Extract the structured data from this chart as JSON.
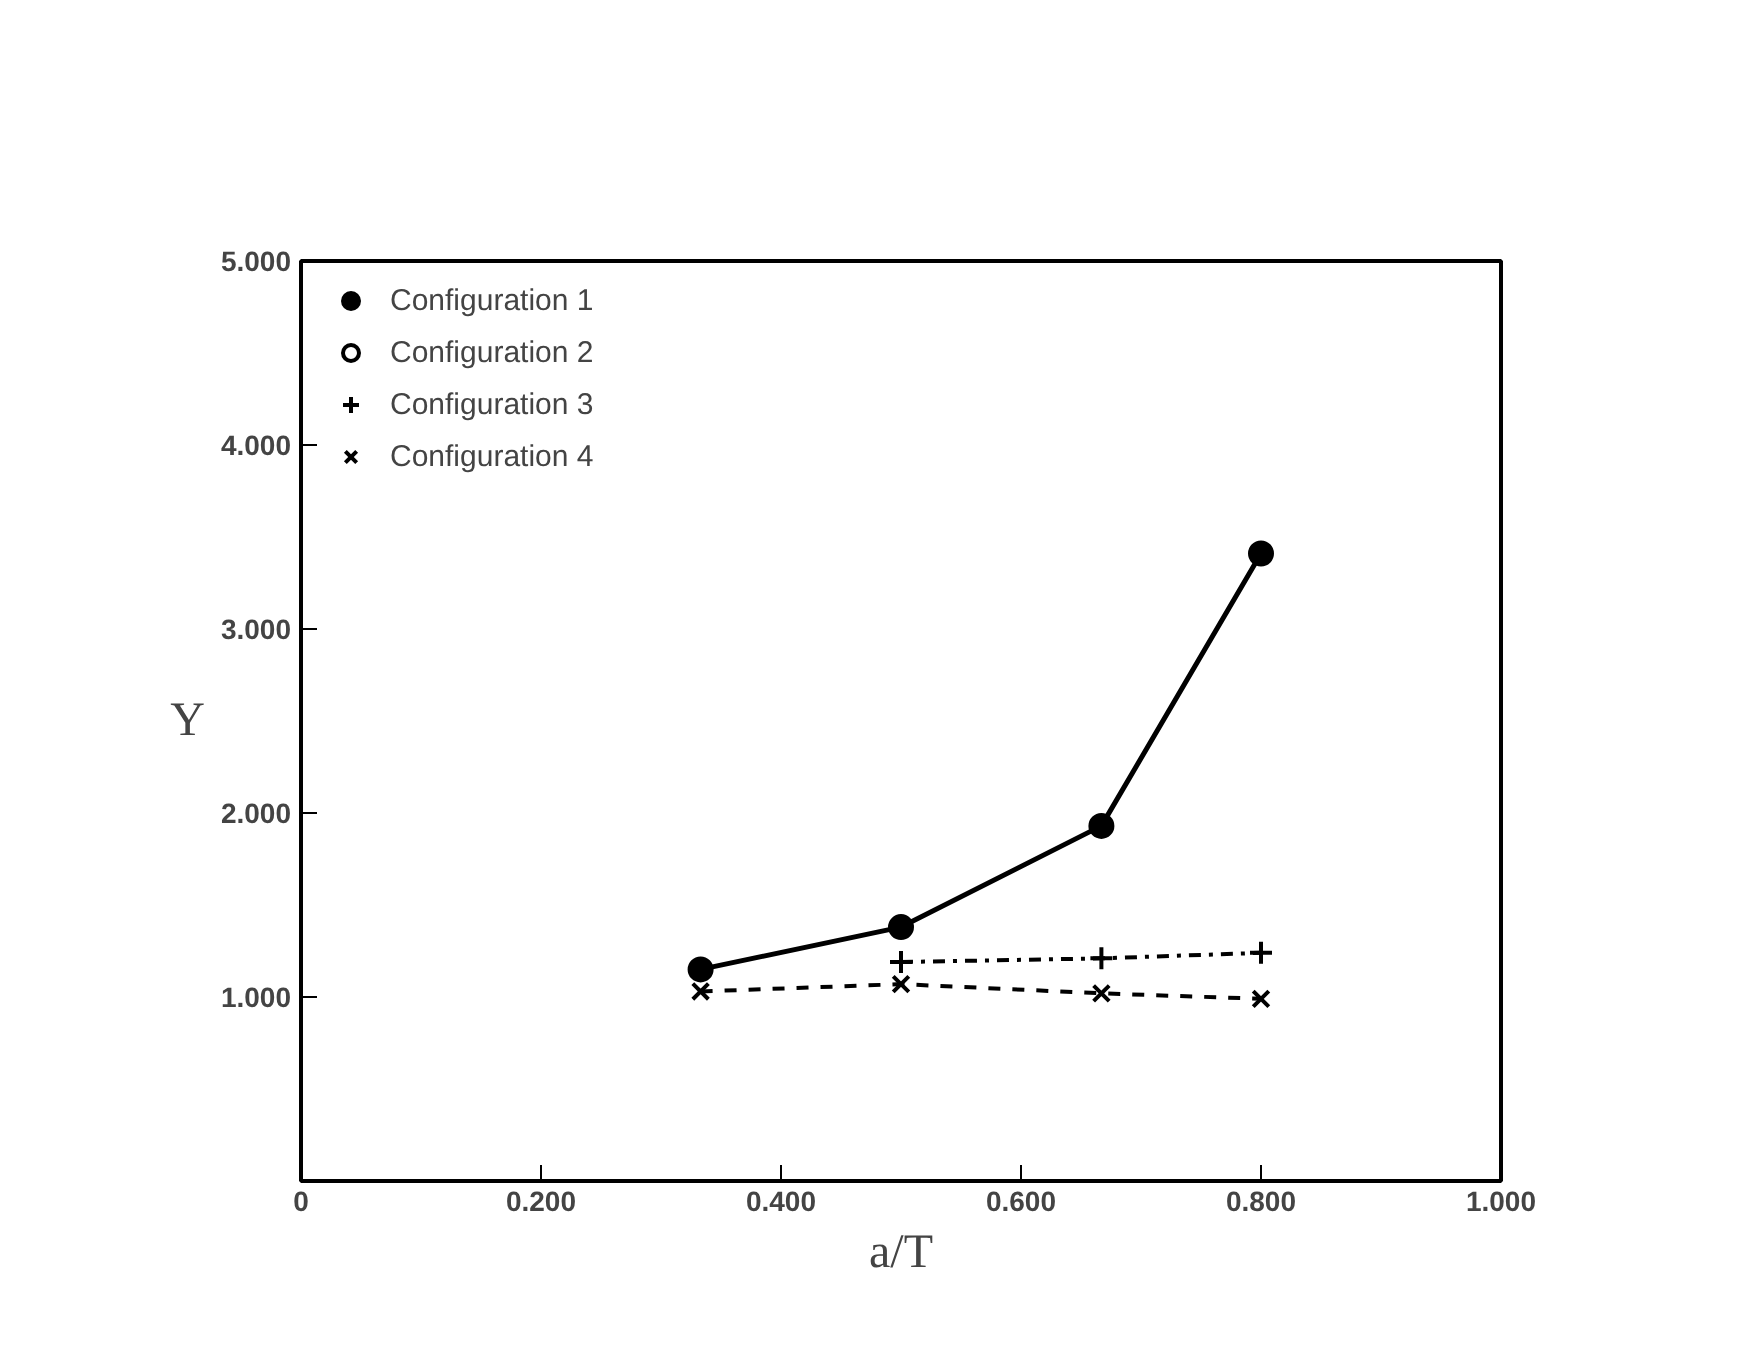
{
  "chart_data": {
    "type": "line",
    "xlabel": "a/T",
    "ylabel": "Y",
    "x": [
      0.333,
      0.5,
      0.667,
      0.8
    ],
    "series": [
      {
        "name": "Configuration 1",
        "color": "#000000",
        "marker": "circle",
        "line_style": "solid",
        "values": [
          1.15,
          1.38,
          1.93,
          3.41
        ]
      },
      {
        "name": "Configuration 2",
        "color": "#000000",
        "marker": "open_circle",
        "line_style": "solid",
        "values": [
          null,
          null,
          null,
          null
        ]
      },
      {
        "name": "Configuration 3",
        "color": "#000000",
        "marker": "cross",
        "line_style": "dashdot",
        "values": [
          null,
          1.19,
          1.21,
          1.24
        ]
      },
      {
        "name": "Configuration 4",
        "color": "#000000",
        "marker": "x",
        "line_style": "dashed",
        "values": [
          1.03,
          1.07,
          1.02,
          0.99
        ]
      }
    ],
    "xlim": [
      0,
      1
    ],
    "ylim": [
      0,
      5
    ],
    "xticks": [
      0,
      {
        "value": 0.2,
        "label": "0.200"
      },
      {
        "value": 0.4,
        "label": "0.400"
      },
      {
        "value": 0.6,
        "label": "0.600"
      },
      {
        "value": 0.8,
        "label": "0.800"
      },
      {
        "value": 1,
        "label": "1.000"
      }
    ],
    "yticks": [
      {
        "value": 1,
        "label": "1.000"
      },
      {
        "value": 2,
        "label": "2.000"
      },
      {
        "value": 3,
        "label": "3.000"
      },
      {
        "value": 4,
        "label": "4.000"
      },
      {
        "value": 5,
        "label": "5.000"
      }
    ],
    "grid": false,
    "legend": "top left"
  }
}
